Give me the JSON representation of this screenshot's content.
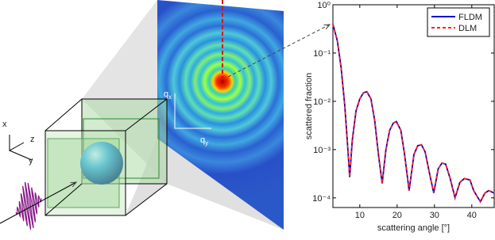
{
  "diagram": {
    "axis_labels": [
      "x",
      "z",
      "y"
    ],
    "detector_labels": [
      {
        "base": "q",
        "sub": "x"
      },
      {
        "base": "q",
        "sub": "y"
      }
    ]
  },
  "chart_data": {
    "type": "line",
    "xlabel": "scattering angle [°]",
    "ylabel": "scattered fraction",
    "x": [
      2.8,
      4,
      5,
      6,
      7,
      7.3,
      8,
      9,
      10,
      11,
      11.9,
      13,
      14,
      15,
      16,
      17,
      18,
      19,
      19.8,
      21,
      22,
      23.2,
      24.5,
      25.5,
      26.5,
      27.5,
      28.7,
      29.8,
      31,
      32,
      33,
      34.2,
      35.5,
      36.8,
      38,
      39.5,
      40.5,
      42.3,
      43.5,
      44.5,
      46
    ],
    "series": [
      {
        "name": "FLDM",
        "color": "#0000cc",
        "linestyle": "solid",
        "values": [
          0.398,
          0.178,
          0.0501,
          0.00794,
          0.000631,
          0.000269,
          0.00158,
          0.00631,
          0.0112,
          0.0151,
          0.0158,
          0.0112,
          0.00398,
          0.000794,
          0.0002,
          0.001,
          0.00251,
          0.00355,
          0.0038,
          0.00251,
          0.000794,
          0.000141,
          0.000794,
          0.0012,
          0.00126,
          0.000891,
          0.000316,
          0.000126,
          0.000398,
          0.000525,
          0.000501,
          0.000251,
          0.0001,
          0.000209,
          0.000251,
          0.000234,
          0.000141,
          8.32e-05,
          0.000126,
          0.000141,
          0.000126
        ]
      },
      {
        "name": "DLM",
        "color": "#ff2020",
        "linestyle": "dashed",
        "values": [
          0.398,
          0.178,
          0.0501,
          0.00794,
          0.000631,
          0.000269,
          0.00158,
          0.00631,
          0.0112,
          0.0151,
          0.0158,
          0.0112,
          0.00398,
          0.000794,
          0.0002,
          0.001,
          0.00251,
          0.00355,
          0.0038,
          0.00251,
          0.000794,
          0.000141,
          0.000794,
          0.0012,
          0.00126,
          0.000891,
          0.000316,
          0.000126,
          0.000398,
          0.000525,
          0.000501,
          0.000251,
          0.0001,
          0.000209,
          0.000251,
          0.000234,
          0.000141,
          8.32e-05,
          0.000126,
          0.000141,
          0.000126
        ]
      }
    ],
    "xlim": [
      2.8,
      46
    ],
    "xticks": [
      10,
      20,
      30,
      40
    ],
    "ylim": [
      6.31e-05,
      1
    ],
    "log_y": true,
    "yticks": [
      {
        "value": 0.0001,
        "label": "10⁻⁴"
      },
      {
        "value": 0.001,
        "label": "10⁻³"
      },
      {
        "value": 0.01,
        "label": "10⁻²"
      },
      {
        "value": 0.1,
        "label": "10⁻¹"
      },
      {
        "value": 1,
        "label": "10⁰"
      }
    ],
    "legend": "upper right"
  }
}
